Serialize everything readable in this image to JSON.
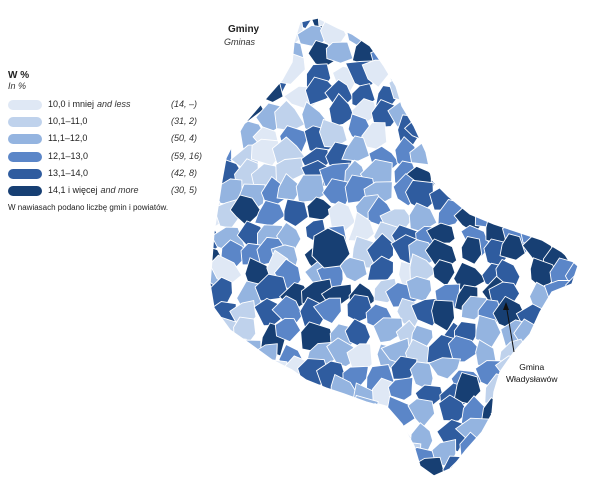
{
  "map": {
    "title": "Gminy",
    "subtitle": "Gminas"
  },
  "legend": {
    "title": "W %",
    "subtitle": "In %",
    "note": "W nawiasach podano liczbę gmin i powiatów.",
    "classes": [
      {
        "label": "10,0 i mniej",
        "label_en": "and less",
        "counts": "(14, –)",
        "color": "#dfe8f5"
      },
      {
        "label": "10,1–11,0",
        "label_en": "",
        "counts": "(31, 2)",
        "color": "#bfd2ec"
      },
      {
        "label": "11,1–12,0",
        "label_en": "",
        "counts": "(50, 4)",
        "color": "#94b4e0"
      },
      {
        "label": "12,1–13,0",
        "label_en": "",
        "counts": "(59, 16)",
        "color": "#5b86c8"
      },
      {
        "label": "13,1–14,0",
        "label_en": "",
        "counts": "(42, 8)",
        "color": "#2f5c9f"
      },
      {
        "label": "14,1 i więcej",
        "label_en": "and more",
        "counts": "(30, 5)",
        "color": "#173f73"
      }
    ]
  },
  "callout": {
    "line1": "Gmina",
    "line2": "Władysławów"
  },
  "colors": {
    "border": "#ffffff",
    "arrow": "#111111"
  }
}
